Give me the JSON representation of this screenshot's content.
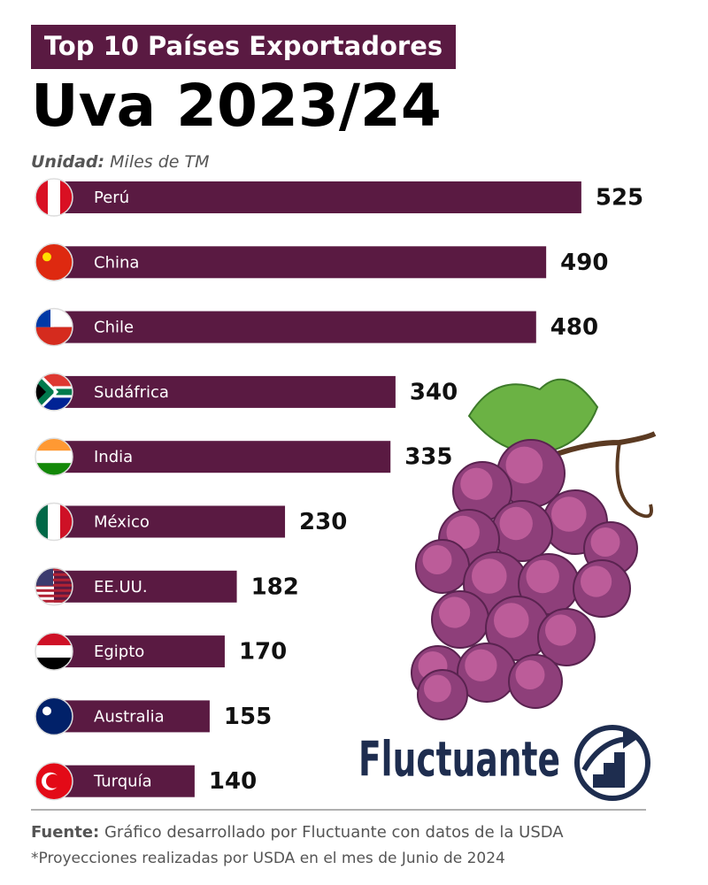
{
  "chart_data": {
    "type": "bar",
    "orientation": "horizontal",
    "title": "Top 10 Países Exportadores",
    "subtitle": "Uva 2023/24",
    "unit_label": "Unidad:",
    "unit": "Miles de TM",
    "categories": [
      "Perú",
      "China",
      "Chile",
      "Sudáfrica",
      "India",
      "México",
      "EE.UU.",
      "Egipto",
      "Australia",
      "Turquía"
    ],
    "values": [
      525,
      490,
      480,
      340,
      335,
      230,
      182,
      170,
      155,
      140
    ],
    "color": "#5a1a42",
    "source_label": "Fuente:",
    "source": "Gráfico desarrollado por Fluctuante con datos de la USDA",
    "note": "*Proyecciones realizadas por USDA en el mes de Junio de 2024",
    "brand": "Fluctuante"
  }
}
